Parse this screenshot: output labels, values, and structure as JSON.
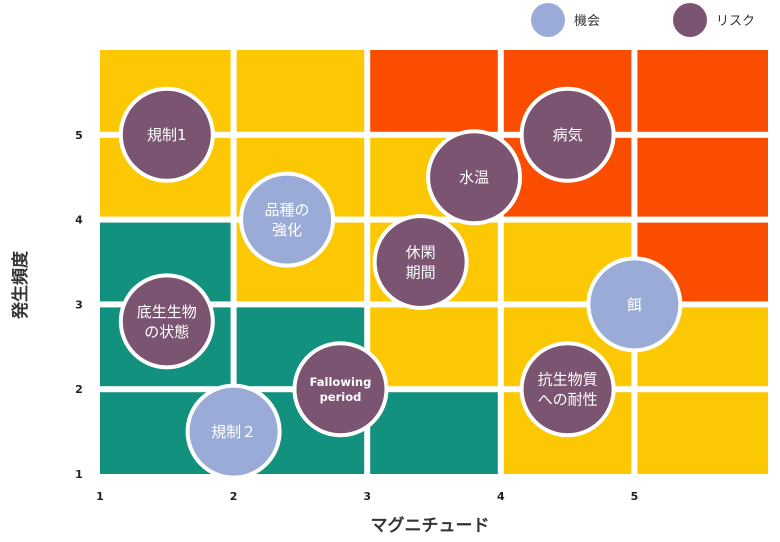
{
  "chart_data": {
    "type": "scatter",
    "title": "",
    "xlabel": "マグニチュード",
    "ylabel": "発生頻度",
    "xlim": [
      1,
      6
    ],
    "ylim": [
      1,
      6
    ],
    "x_ticks": [
      "1",
      "2",
      "3",
      "4",
      "5"
    ],
    "y_ticks": [
      "1",
      "2",
      "3",
      "4",
      "5"
    ],
    "grid": false,
    "legend_position": "top-right",
    "colors": {
      "green": "#12917f",
      "yellow": "#fcc804",
      "orange": "#fb4d00",
      "opportunity": "#9babd7",
      "risk": "#7a5470",
      "bubble_border": "#ffffff"
    },
    "background_cells": [
      {
        "x0": 1,
        "x1": 2,
        "y0": 1,
        "y1": 2,
        "color": "green"
      },
      {
        "x0": 2,
        "x1": 3,
        "y0": 1,
        "y1": 2,
        "color": "green"
      },
      {
        "x0": 3,
        "x1": 4,
        "y0": 1,
        "y1": 2,
        "color": "green"
      },
      {
        "x0": 4,
        "x1": 5,
        "y0": 1,
        "y1": 2,
        "color": "yellow"
      },
      {
        "x0": 5,
        "x1": 6,
        "y0": 1,
        "y1": 2,
        "color": "yellow"
      },
      {
        "x0": 1,
        "x1": 2,
        "y0": 2,
        "y1": 3,
        "color": "green"
      },
      {
        "x0": 2,
        "x1": 3,
        "y0": 2,
        "y1": 3,
        "color": "green"
      },
      {
        "x0": 3,
        "x1": 4,
        "y0": 2,
        "y1": 3,
        "color": "yellow"
      },
      {
        "x0": 4,
        "x1": 5,
        "y0": 2,
        "y1": 3,
        "color": "yellow"
      },
      {
        "x0": 5,
        "x1": 6,
        "y0": 2,
        "y1": 3,
        "color": "yellow"
      },
      {
        "x0": 1,
        "x1": 2,
        "y0": 3,
        "y1": 4,
        "color": "green"
      },
      {
        "x0": 2,
        "x1": 3,
        "y0": 3,
        "y1": 4,
        "color": "yellow"
      },
      {
        "x0": 3,
        "x1": 4,
        "y0": 3,
        "y1": 4,
        "color": "yellow"
      },
      {
        "x0": 4,
        "x1": 5,
        "y0": 3,
        "y1": 4,
        "color": "yellow"
      },
      {
        "x0": 5,
        "x1": 6,
        "y0": 3,
        "y1": 4,
        "color": "orange"
      },
      {
        "x0": 1,
        "x1": 2,
        "y0": 4,
        "y1": 5,
        "color": "yellow"
      },
      {
        "x0": 2,
        "x1": 3,
        "y0": 4,
        "y1": 5,
        "color": "yellow"
      },
      {
        "x0": 3,
        "x1": 4,
        "y0": 4,
        "y1": 5,
        "color": "yellow"
      },
      {
        "x0": 4,
        "x1": 5,
        "y0": 4,
        "y1": 5,
        "color": "orange"
      },
      {
        "x0": 5,
        "x1": 6,
        "y0": 4,
        "y1": 5,
        "color": "orange"
      },
      {
        "x0": 1,
        "x1": 2,
        "y0": 5,
        "y1": 6,
        "color": "yellow"
      },
      {
        "x0": 2,
        "x1": 3,
        "y0": 5,
        "y1": 6,
        "color": "yellow"
      },
      {
        "x0": 3,
        "x1": 4,
        "y0": 5,
        "y1": 6,
        "color": "orange"
      },
      {
        "x0": 4,
        "x1": 5,
        "y0": 5,
        "y1": 6,
        "color": "orange"
      },
      {
        "x0": 5,
        "x1": 6,
        "y0": 5,
        "y1": 6,
        "color": "orange"
      }
    ],
    "series": [
      {
        "name": "機会",
        "points": [
          {
            "label": [
              "品種の",
              "強化"
            ],
            "x": 2.4,
            "y": 4.0
          },
          {
            "label": [
              "規制２"
            ],
            "x": 2.0,
            "y": 1.5
          },
          {
            "label": [
              "餌"
            ],
            "x": 5.0,
            "y": 3.0
          }
        ]
      },
      {
        "name": "リスク",
        "points": [
          {
            "label": [
              "規制1"
            ],
            "x": 1.5,
            "y": 5.0
          },
          {
            "label": [
              "水温"
            ],
            "x": 3.8,
            "y": 4.5
          },
          {
            "label": [
              "病気"
            ],
            "x": 4.5,
            "y": 5.0
          },
          {
            "label": [
              "休閑",
              "期間"
            ],
            "x": 3.4,
            "y": 3.5
          },
          {
            "label": [
              "底生生物",
              "の状態"
            ],
            "x": 1.5,
            "y": 2.8
          },
          {
            "label": [
              "Fallowing",
              "period"
            ],
            "x": 2.8,
            "y": 2.0
          },
          {
            "label": [
              "抗生物質",
              "への耐性"
            ],
            "x": 4.5,
            "y": 2.0
          }
        ]
      }
    ]
  }
}
